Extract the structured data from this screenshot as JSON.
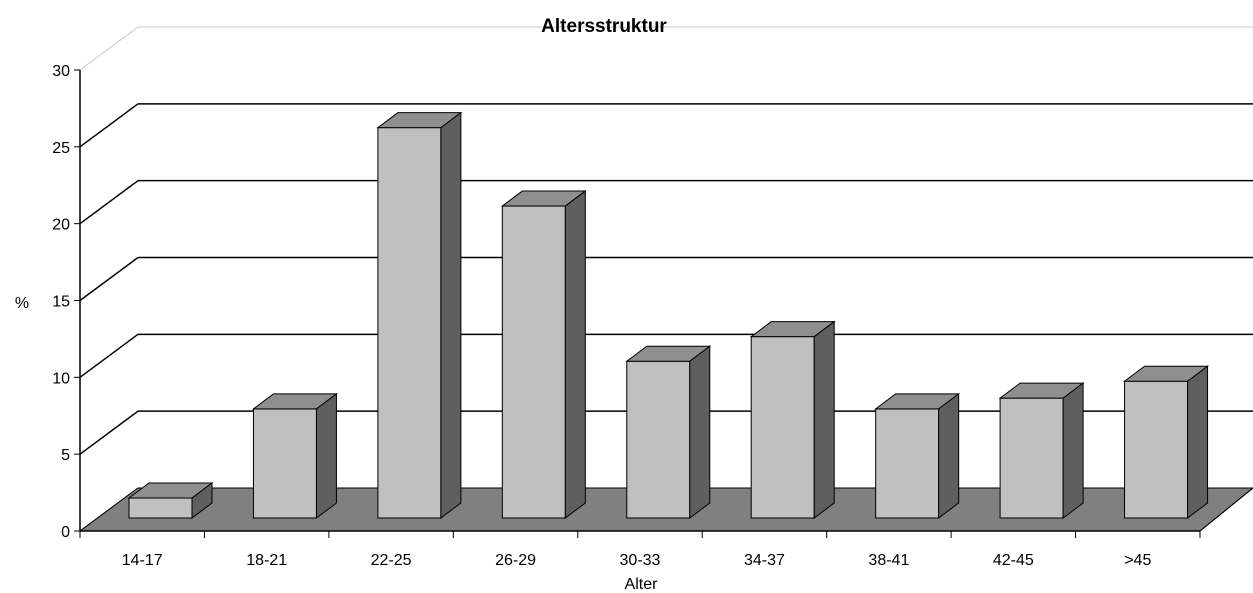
{
  "chart_data": {
    "type": "bar",
    "title": "Altersstruktur",
    "xlabel": "Alter",
    "ylabel": "%",
    "categories": [
      "14-17",
      "18-21",
      "22-25",
      "26-29",
      "30-33",
      "34-37",
      "38-41",
      "42-45",
      ">45"
    ],
    "values": [
      1.3,
      7.1,
      25.4,
      20.3,
      10.2,
      11.8,
      7.1,
      7.8,
      8.9
    ],
    "ylim": [
      0,
      30
    ],
    "yticks": [
      "0",
      "5",
      "10",
      "15",
      "20",
      "25",
      "30"
    ],
    "grid": true,
    "style": "3d-column",
    "colors": {
      "bar_front": "#c0c0c0",
      "bar_top": "#8f8f8f",
      "bar_side": "#5f5f5f",
      "floor": "#808080"
    }
  }
}
